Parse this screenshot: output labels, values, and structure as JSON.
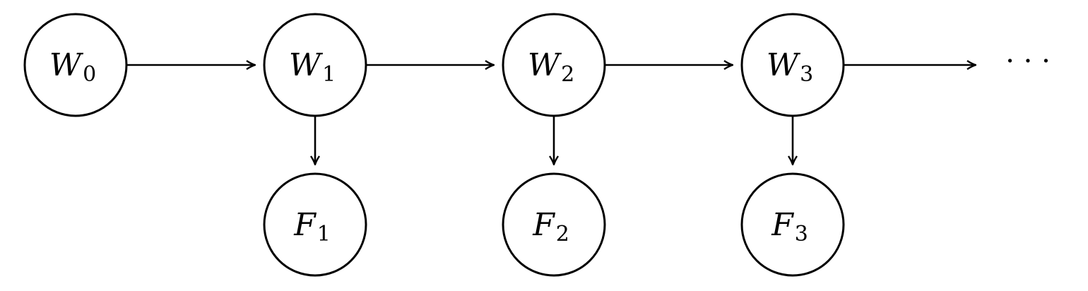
{
  "diagram": {
    "nodes": [
      {
        "id": "W0",
        "letter": "W",
        "sub": "0"
      },
      {
        "id": "W1",
        "letter": "W",
        "sub": "1"
      },
      {
        "id": "W2",
        "letter": "W",
        "sub": "2"
      },
      {
        "id": "W3",
        "letter": "W",
        "sub": "3"
      },
      {
        "id": "F1",
        "letter": "F",
        "sub": "1"
      },
      {
        "id": "F2",
        "letter": "F",
        "sub": "2"
      },
      {
        "id": "F3",
        "letter": "F",
        "sub": "3"
      }
    ],
    "edges": [
      {
        "from": "W0",
        "to": "W1"
      },
      {
        "from": "W1",
        "to": "W2"
      },
      {
        "from": "W2",
        "to": "W3"
      },
      {
        "from": "W3",
        "to": "continuation"
      },
      {
        "from": "W1",
        "to": "F1"
      },
      {
        "from": "W2",
        "to": "F2"
      },
      {
        "from": "W3",
        "to": "F3"
      }
    ],
    "continuation": "· · ·"
  }
}
